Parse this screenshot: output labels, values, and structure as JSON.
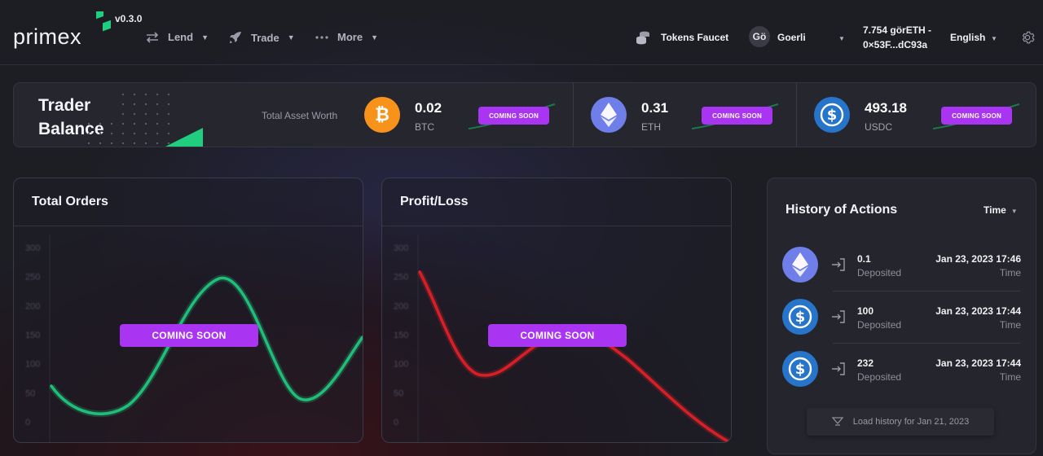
{
  "header": {
    "logo": "primex",
    "version": "v0.3.0",
    "nav": [
      {
        "label": "Lend",
        "icon": "swap-arrows-icon"
      },
      {
        "label": "Trade",
        "icon": "rocket-icon"
      },
      {
        "label": "More",
        "icon": "ellipsis-icon"
      }
    ],
    "faucet_label": "Tokens Faucet",
    "network_avatar": "Gö",
    "network_label": "Goerli",
    "wallet_balance": "7.754 görETH -",
    "wallet_address": "0×53F...dC93a",
    "language": "English"
  },
  "balance": {
    "title_line1": "Trader",
    "title_line2": "Balance",
    "total_label": "Total Asset Worth",
    "coming_soon": "COMING SOON",
    "assets": [
      {
        "value": "0.02",
        "symbol": "BTC",
        "icon": "bitcoin-icon",
        "color": "#f7931a"
      },
      {
        "value": "0.31",
        "symbol": "ETH",
        "icon": "ethereum-icon",
        "color": "#6f7ee8"
      },
      {
        "value": "493.18",
        "symbol": "USDC",
        "icon": "usdc-icon",
        "color": "#2775ca"
      }
    ]
  },
  "panels": {
    "orders_title": "Total Orders",
    "pnl_title": "Profit/Loss",
    "coming_soon": "COMING SOON"
  },
  "chart_data": [
    {
      "type": "line",
      "title": "Total Orders",
      "yticks": [
        0,
        50,
        100,
        150,
        200,
        250,
        300
      ],
      "ylim": [
        0,
        300
      ],
      "color": "#1fbf7a"
    },
    {
      "type": "line",
      "title": "Profit/Loss",
      "yticks": [
        0,
        50,
        100,
        150,
        200,
        250,
        300
      ],
      "ylim": [
        0,
        300
      ],
      "color": "#d81f26"
    }
  ],
  "history": {
    "title": "History of Actions",
    "sort_label": "Time",
    "rows": [
      {
        "icon": "ethereum-icon",
        "amount": "0.1",
        "action": "Deposited",
        "date": "Jan 23, 2023 17:46",
        "time_label": "Time"
      },
      {
        "icon": "usdc-icon",
        "amount": "100",
        "action": "Deposited",
        "date": "Jan 23, 2023 17:44",
        "time_label": "Time"
      },
      {
        "icon": "usdc-icon",
        "amount": "232",
        "action": "Deposited",
        "date": "Jan 23, 2023 17:44",
        "time_label": "Time"
      }
    ],
    "load_more": "Load history for Jan 21, 2023"
  },
  "colors": {
    "accent_purple": "#a934f2",
    "green": "#1fbf7a",
    "red": "#d81f26"
  }
}
